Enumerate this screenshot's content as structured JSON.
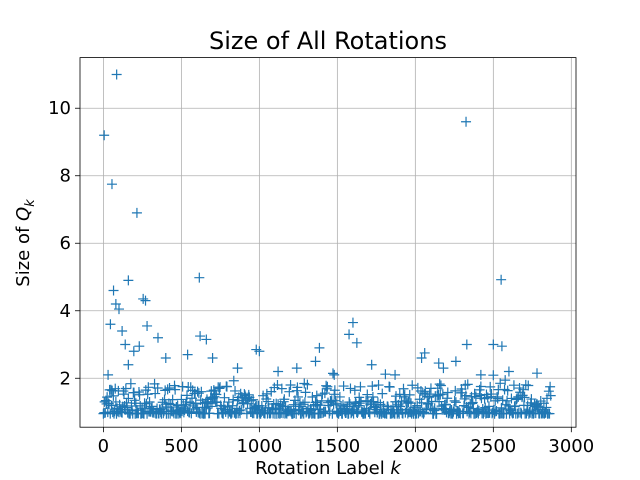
{
  "chart_data": {
    "type": "scatter",
    "title": "Size of All Rotations",
    "xlabel_main": "Rotation Label ",
    "xlabel_var": "k",
    "ylabel_main": "Size of ",
    "ylabel_var": "Q",
    "ylabel_sub": "k",
    "marker": "+",
    "color": "#1f77b4",
    "grid": true,
    "xlim": [
      -150,
      3030
    ],
    "ylim": [
      0.55,
      11.5
    ],
    "xticks": [
      0,
      500,
      1000,
      1500,
      2000,
      2500,
      3000
    ],
    "yticks": [
      2,
      4,
      6,
      8,
      10
    ],
    "points": [
      [
        5,
        9.2
      ],
      [
        85,
        11.0
      ],
      [
        55,
        7.75
      ],
      [
        215,
        6.9
      ],
      [
        2325,
        9.6
      ],
      [
        160,
        4.9
      ],
      [
        615,
        4.98
      ],
      [
        2550,
        4.92
      ],
      [
        65,
        4.6
      ],
      [
        80,
        4.2
      ],
      [
        100,
        4.05
      ],
      [
        255,
        4.35
      ],
      [
        270,
        4.3
      ],
      [
        1600,
        3.65
      ],
      [
        1575,
        3.3
      ],
      [
        1385,
        2.9
      ],
      [
        120,
        3.4
      ],
      [
        140,
        3.0
      ],
      [
        280,
        3.55
      ],
      [
        350,
        3.2
      ],
      [
        620,
        3.25
      ],
      [
        660,
        3.15
      ],
      [
        1625,
        3.05
      ],
      [
        2500,
        3.0
      ],
      [
        2555,
        2.95
      ],
      [
        2330,
        3.0
      ],
      [
        45,
        3.6
      ],
      [
        195,
        2.8
      ],
      [
        230,
        2.95
      ],
      [
        400,
        2.6
      ],
      [
        540,
        2.7
      ],
      [
        980,
        2.85
      ],
      [
        1000,
        2.8
      ],
      [
        1240,
        2.3
      ],
      [
        1360,
        2.5
      ],
      [
        2040,
        2.6
      ],
      [
        2060,
        2.75
      ],
      [
        2180,
        2.3
      ],
      [
        2600,
        2.2
      ],
      [
        2780,
        2.15
      ],
      [
        2260,
        2.5
      ],
      [
        2420,
        2.1
      ],
      [
        30,
        2.1
      ],
      [
        160,
        2.4
      ],
      [
        700,
        2.6
      ],
      [
        860,
        2.3
      ],
      [
        1120,
        2.2
      ],
      [
        1480,
        2.1
      ],
      [
        1720,
        2.4
      ],
      [
        1870,
        2.1
      ],
      [
        2150,
        2.45
      ]
    ]
  }
}
